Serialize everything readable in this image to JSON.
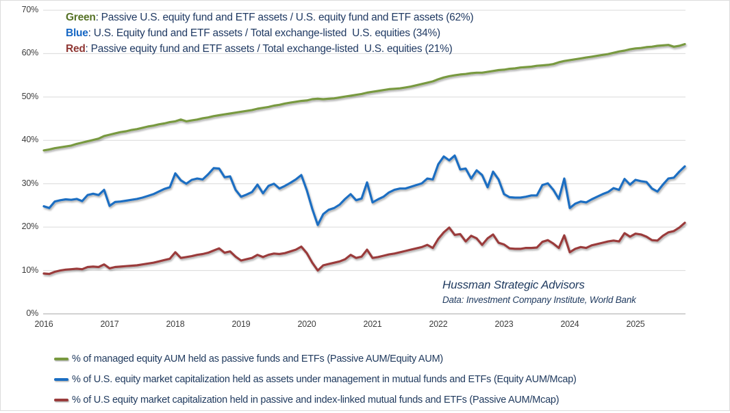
{
  "figure": {
    "attribution_line1": "Hussman Strategic Advisors",
    "attribution_line2": "Data: Investment Company Institute,  World Bank"
  },
  "annotations": [
    {
      "label": "Green",
      "text": ": Passive U.S. equity fund and ETF assets / U.S. equity fund and ETF assets (62%)",
      "color": "#567226"
    },
    {
      "label": "Blue",
      "text": ": U.S. Equity fund and ETF assets / Total exchange-listed  U.S. equities (34%)",
      "color": "#1667c4"
    },
    {
      "label": "Red",
      "text": ": Passive equity fund and ETF assets / Total exchange-listed  U.S. equities (21%)",
      "color": "#8f3734"
    }
  ],
  "chart_data": {
    "type": "line",
    "title": "",
    "xlabel": "",
    "ylabel": "",
    "x_unit": "month",
    "x_range": [
      "2016-01",
      "2025-10"
    ],
    "x_tick_labels": [
      "2016",
      "2017",
      "2018",
      "2019",
      "2020",
      "2021",
      "2022",
      "2023",
      "2024",
      "2025"
    ],
    "ylim": [
      0,
      70
    ],
    "y_tick_step": 10,
    "y_tick_labels": [
      "0%",
      "10%",
      "20%",
      "30%",
      "40%",
      "50%",
      "60%",
      "70%"
    ],
    "grid": "horizontal",
    "legend_position": "bottom-left",
    "colors": {
      "gridline": "#d9d9d9",
      "axis_line": "#a6a6a6",
      "tick_text": "#3c3c3c",
      "body_text": "#203a5e"
    },
    "series": [
      {
        "id": "green",
        "legend": "% of managed equity AUM held as passive funds and ETFs (Passive AUM/Equity AUM)",
        "color": "#78993f",
        "final_value": "62%",
        "values": [
          37.7,
          37.9,
          38.2,
          38.4,
          38.6,
          38.8,
          39.2,
          39.5,
          39.8,
          40.1,
          40.4,
          41.0,
          41.3,
          41.6,
          41.9,
          42.1,
          42.4,
          42.6,
          42.9,
          43.2,
          43.4,
          43.7,
          43.9,
          44.2,
          44.4,
          44.8,
          44.4,
          44.6,
          44.8,
          45.1,
          45.3,
          45.6,
          45.8,
          46.0,
          46.2,
          46.4,
          46.6,
          46.8,
          47.0,
          47.3,
          47.5,
          47.7,
          48.0,
          48.2,
          48.5,
          48.7,
          48.9,
          49.1,
          49.2,
          49.5,
          49.6,
          49.5,
          49.6,
          49.7,
          49.9,
          50.1,
          50.3,
          50.5,
          50.7,
          51.0,
          51.2,
          51.4,
          51.6,
          51.8,
          51.9,
          52.0,
          52.2,
          52.4,
          52.7,
          53.0,
          53.3,
          53.6,
          54.1,
          54.5,
          54.8,
          55.0,
          55.2,
          55.3,
          55.5,
          55.6,
          55.6,
          55.8,
          56.0,
          56.2,
          56.3,
          56.5,
          56.6,
          56.8,
          56.9,
          57.0,
          57.2,
          57.3,
          57.4,
          57.6,
          58.0,
          58.3,
          58.5,
          58.7,
          58.9,
          59.1,
          59.3,
          59.5,
          59.7,
          59.9,
          60.2,
          60.5,
          60.7,
          61.0,
          61.2,
          61.3,
          61.5,
          61.6,
          61.8,
          61.9,
          62.0,
          61.6,
          61.8,
          62.2
        ]
      },
      {
        "id": "blue",
        "legend": "% of U.S. equity market capitalization held as assets under management in mutual funds and ETFs (Equity AUM/Mcap)",
        "color": "#1b6ec2",
        "final_value": "34%",
        "values": [
          24.8,
          24.4,
          25.9,
          26.2,
          26.4,
          26.3,
          26.5,
          26.0,
          27.4,
          27.7,
          27.4,
          28.6,
          24.9,
          25.8,
          25.9,
          26.1,
          26.3,
          26.5,
          26.8,
          27.2,
          27.6,
          28.2,
          28.8,
          29.2,
          32.4,
          30.8,
          30.0,
          30.9,
          31.2,
          31.0,
          32.2,
          33.6,
          33.5,
          31.5,
          31.7,
          28.6,
          27.0,
          27.5,
          28.1,
          29.8,
          27.8,
          29.5,
          30.0,
          28.9,
          29.5,
          30.2,
          31.0,
          32.0,
          28.5,
          24.2,
          20.5,
          23.0,
          24.0,
          24.4,
          25.2,
          26.5,
          27.6,
          26.2,
          26.6,
          30.3,
          25.7,
          26.4,
          27.0,
          28.0,
          28.6,
          28.9,
          28.9,
          29.3,
          29.7,
          30.1,
          31.2,
          31.0,
          34.5,
          36.3,
          35.4,
          36.5,
          33.3,
          33.5,
          31.2,
          33.1,
          32.0,
          29.2,
          32.8,
          31.0,
          27.6,
          26.9,
          26.8,
          26.8,
          27.0,
          27.3,
          27.3,
          29.7,
          30.1,
          28.6,
          26.5,
          31.2,
          24.4,
          25.4,
          25.9,
          25.7,
          26.4,
          27.0,
          27.6,
          28.1,
          29.0,
          28.6,
          31.1,
          29.8,
          30.9,
          30.6,
          30.4,
          28.9,
          28.2,
          29.8,
          31.2,
          31.4,
          32.8,
          34.0
        ]
      },
      {
        "id": "red",
        "legend": "% of U.S equity market capitalization held in passive and index-linked mutual funds and ETFs (Passive AUM/Mcap)",
        "color": "#9a3b3b",
        "final_value": "21%",
        "values": [
          9.3,
          9.2,
          9.7,
          10.0,
          10.2,
          10.3,
          10.4,
          10.3,
          10.8,
          10.9,
          10.8,
          11.4,
          10.5,
          10.8,
          10.9,
          11.0,
          11.1,
          11.2,
          11.4,
          11.6,
          11.8,
          12.1,
          12.4,
          12.7,
          14.2,
          12.9,
          13.1,
          13.3,
          13.6,
          13.8,
          14.1,
          14.6,
          15.1,
          14.1,
          14.4,
          13.2,
          12.3,
          12.6,
          12.9,
          13.6,
          13.1,
          13.6,
          13.9,
          13.8,
          14.0,
          14.4,
          14.8,
          15.5,
          14.0,
          11.8,
          10.0,
          11.2,
          11.5,
          11.8,
          12.1,
          12.6,
          13.6,
          12.9,
          13.2,
          14.8,
          12.9,
          13.1,
          13.4,
          13.7,
          13.9,
          14.2,
          14.5,
          14.8,
          15.1,
          15.4,
          15.9,
          15.2,
          17.3,
          18.8,
          19.9,
          18.2,
          18.4,
          16.7,
          18.0,
          17.4,
          15.9,
          17.4,
          18.3,
          16.4,
          16.0,
          15.1,
          15.0,
          15.0,
          15.2,
          15.2,
          15.3,
          16.6,
          17.0,
          16.2,
          15.2,
          18.1,
          14.2,
          15.0,
          15.4,
          15.2,
          15.8,
          16.1,
          16.4,
          16.7,
          16.9,
          16.7,
          18.6,
          17.8,
          18.5,
          18.3,
          17.8,
          17.0,
          16.9,
          18.0,
          18.8,
          19.1,
          19.9,
          21.0
        ]
      }
    ]
  }
}
